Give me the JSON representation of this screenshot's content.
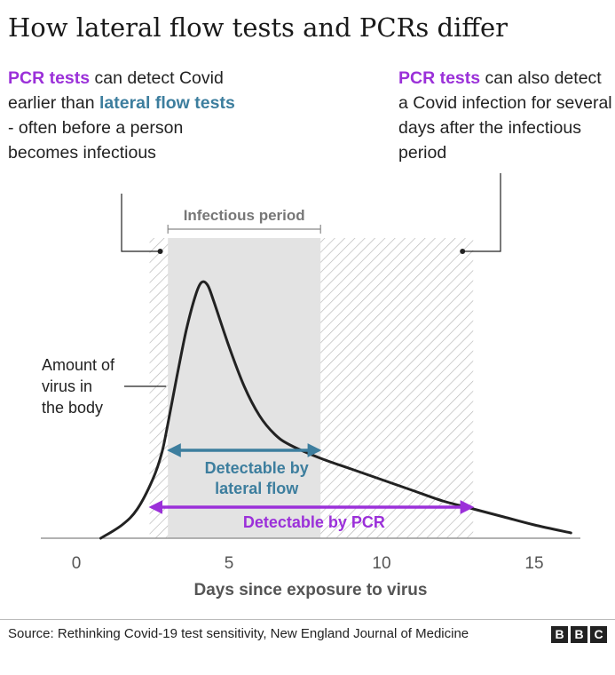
{
  "title": "How lateral flow tests and PCRs differ",
  "annotations": {
    "left": {
      "pcr": "PCR tests",
      "t1": " can detect Covid earlier than ",
      "lft": "lateral flow tests",
      "t2": " - often before a person becomes infectious"
    },
    "right": {
      "pcr": "PCR tests",
      "t1": " can also detect a Covid infection for several days after the infectious period"
    }
  },
  "chart_data": {
    "type": "area",
    "xlabel": "Days since exposure to virus",
    "ylabel": "",
    "xlim": [
      -2.4,
      16.6
    ],
    "x_ticks": [
      0,
      5,
      10,
      15
    ],
    "ylim": [
      0,
      1
    ],
    "grid": false,
    "series": [
      {
        "name": "Amount of virus in the body",
        "x": [
          0.8,
          1.5,
          2.0,
          2.5,
          2.8,
          3.0,
          3.3,
          3.6,
          3.9,
          4.1,
          4.3,
          4.5,
          5.0,
          5.5,
          6.0,
          6.5,
          7.0,
          8.0,
          9.0,
          10.0,
          11.0,
          12.0,
          13.0,
          14.0,
          15.0,
          16.2
        ],
        "y": [
          0.0,
          0.05,
          0.11,
          0.22,
          0.32,
          0.43,
          0.61,
          0.78,
          0.91,
          0.96,
          0.95,
          0.89,
          0.72,
          0.57,
          0.46,
          0.39,
          0.35,
          0.3,
          0.26,
          0.22,
          0.18,
          0.14,
          0.11,
          0.08,
          0.05,
          0.02
        ]
      }
    ],
    "regions": [
      {
        "label": "Infectious period",
        "start": 3.0,
        "end": 8.0,
        "fill": "#e3e3e3"
      },
      {
        "label": "",
        "start": 2.4,
        "end": 13.0,
        "fill": "hatched"
      }
    ],
    "ranges": [
      {
        "label": "Detectable by lateral flow",
        "line1": "Detectable by",
        "line2": "lateral flow",
        "start": 3.0,
        "end": 8.0,
        "color": "#3d7e9e"
      },
      {
        "label": "Detectable by PCR",
        "start": 2.4,
        "end": 13.0,
        "color": "#9b30d9"
      }
    ],
    "curve_label": {
      "line1": "Amount of",
      "line2": "virus in",
      "line3": "the body"
    },
    "colors": {
      "curve": "#222222",
      "pcr": "#9b30d9",
      "lateral_flow": "#3d7e9e",
      "infectious": "#e3e3e3",
      "hatch": "#b5b5b5",
      "axis": "#999999"
    }
  },
  "footer": {
    "source": "Source: Rethinking Covid-19 test sensitivity, New England Journal of Medicine",
    "logo": [
      "B",
      "B",
      "C"
    ]
  }
}
